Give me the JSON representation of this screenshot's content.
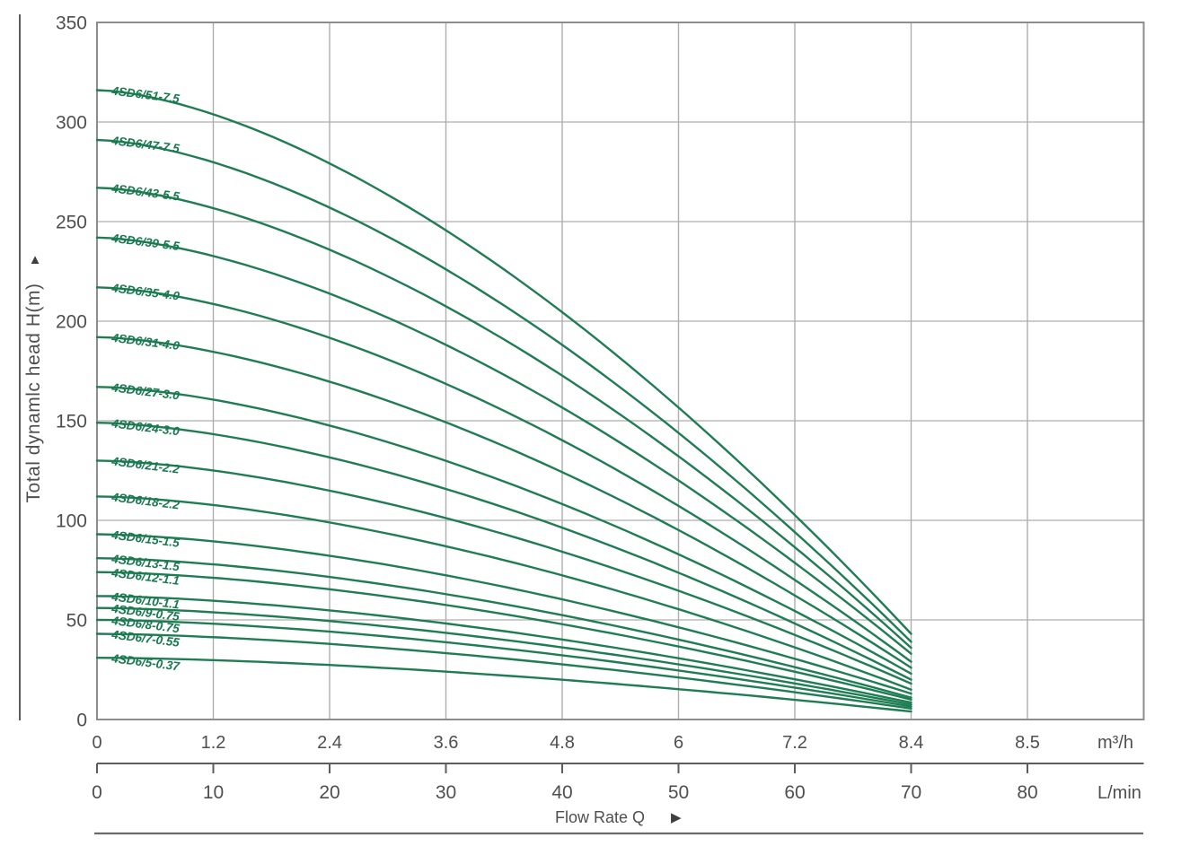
{
  "colors": {
    "curve": "#1e7d52",
    "curve_label": "#17794e",
    "grid": "#aeaeae",
    "plot_border": "#8d8d8d",
    "axis_line": "#5d5d5d",
    "underline": "#6a6a6a",
    "text": "#4f4f4f",
    "background": "#ffffff"
  },
  "icons": {
    "up_arrow": "▲",
    "right_arrow": "▶"
  },
  "chart_data": {
    "type": "line",
    "title": "",
    "grid": true,
    "legend_position": "inline-labels-on-curves",
    "y_axis": {
      "label": "Total dynamlc head H(m)",
      "min": 0,
      "max": 350,
      "tick_step": 50,
      "ticks": [
        350,
        300,
        250,
        200,
        150,
        100,
        50,
        0
      ]
    },
    "x_axis_primary": {
      "unit": "m³/h",
      "tick_labels": [
        "0",
        "1.2",
        "2.4",
        "3.6",
        "4.8",
        "6",
        "7.2",
        "8.4",
        "8.5"
      ]
    },
    "x_axis_secondary": {
      "unit": "L/min",
      "tick_labels": [
        "0",
        "10",
        "20",
        "30",
        "40",
        "50",
        "60",
        "70",
        "80"
      ]
    },
    "x_label": "Flow Rate Q",
    "curves_end_at_tick": "8.4",
    "curve_shape_exponent": 1.6,
    "series": [
      {
        "model": "4SD6/51-7.5",
        "head_m_at_q0": 316,
        "head_m_at_qend": 43
      },
      {
        "model": "4SD6/47-7.5",
        "head_m_at_q0": 291,
        "head_m_at_qend": 39
      },
      {
        "model": "4SD6/43-5.5",
        "head_m_at_q0": 267,
        "head_m_at_qend": 36
      },
      {
        "model": "4SD6/39-5.5",
        "head_m_at_q0": 242,
        "head_m_at_qend": 33
      },
      {
        "model": "4SD6/35-4.0",
        "head_m_at_q0": 217,
        "head_m_at_qend": 29
      },
      {
        "model": "4SD6/31-4.0",
        "head_m_at_q0": 192,
        "head_m_at_qend": 26
      },
      {
        "model": "4SD6/27-3.0",
        "head_m_at_q0": 167,
        "head_m_at_qend": 23
      },
      {
        "model": "4SD6/24-3.0",
        "head_m_at_q0": 149,
        "head_m_at_qend": 20
      },
      {
        "model": "4SD6/21-2.2",
        "head_m_at_q0": 130,
        "head_m_at_qend": 18
      },
      {
        "model": "4SD6/18-2.2",
        "head_m_at_q0": 112,
        "head_m_at_qend": 15
      },
      {
        "model": "4SD6/15-1.5",
        "head_m_at_q0": 93,
        "head_m_at_qend": 13
      },
      {
        "model": "4SD6/13-1.5",
        "head_m_at_q0": 81,
        "head_m_at_qend": 11
      },
      {
        "model": "4SD6/12-1.1",
        "head_m_at_q0": 74,
        "head_m_at_qend": 10
      },
      {
        "model": "4SD6/10-1.1",
        "head_m_at_q0": 62,
        "head_m_at_qend": 8.5
      },
      {
        "model": "4SD6/9-0.75",
        "head_m_at_q0": 56,
        "head_m_at_qend": 7.5
      },
      {
        "model": "4SD6/8-0.75",
        "head_m_at_q0": 50,
        "head_m_at_qend": 6.5
      },
      {
        "model": "4SD6/7-0.55",
        "head_m_at_q0": 43,
        "head_m_at_qend": 5.5
      },
      {
        "model": "4SD6/5-0.37",
        "head_m_at_q0": 31,
        "head_m_at_qend": 4
      }
    ]
  }
}
